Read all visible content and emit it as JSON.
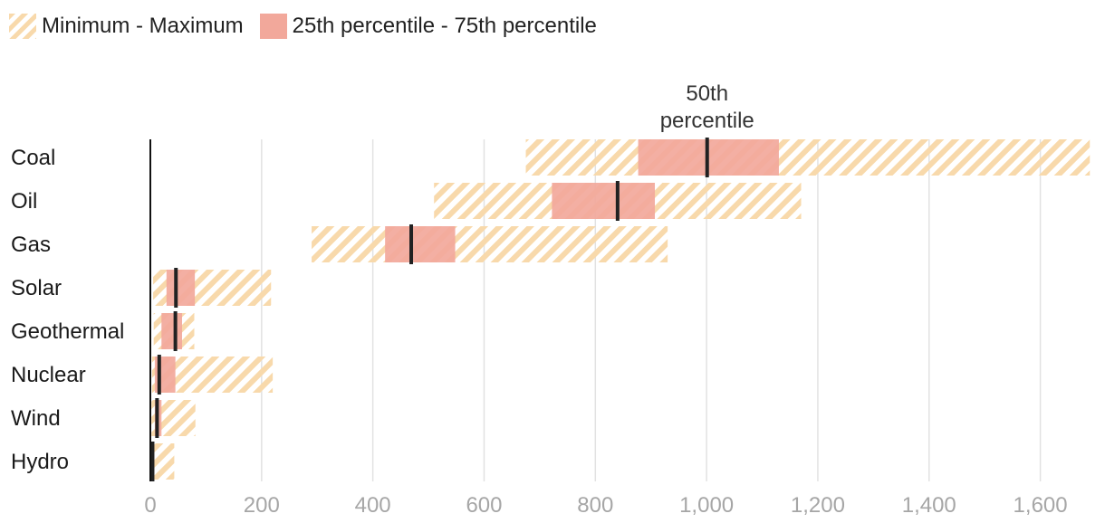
{
  "legend": {
    "range_label": "Minimum - Maximum",
    "iqr_label": "25th percentile - 75th percentile"
  },
  "colors": {
    "range_hatch": "#f8d9ab",
    "iqr_fill": "#f2a89b",
    "median_line": "#222222",
    "gridline": "#e2e2e2",
    "axis_line": "#111111",
    "tick_text": "#a6a6a6"
  },
  "chart_data": {
    "type": "bar",
    "subtype": "floating-range",
    "orientation": "horizontal",
    "categories": [
      "Coal",
      "Oil",
      "Gas",
      "Solar",
      "Geothermal",
      "Nuclear",
      "Wind",
      "Hydro"
    ],
    "series": [
      {
        "name": "Minimum - Maximum",
        "min": [
          675,
          510,
          290,
          5,
          6,
          3,
          2,
          1
        ],
        "max": [
          1689,
          1170,
          930,
          217,
          79,
          220,
          81,
          43
        ]
      },
      {
        "name": "25th percentile - 75th percentile",
        "q1": [
          877,
          722,
          422,
          29,
          20,
          8,
          8,
          3
        ],
        "q3": [
          1130,
          907,
          548,
          80,
          57,
          45,
          20,
          7
        ]
      }
    ],
    "median": [
      1001,
      840,
      469,
      46,
      45,
      16,
      12,
      4
    ],
    "annotation": "50th percentile",
    "xlim": [
      0,
      1700
    ],
    "xticks": [
      0,
      200,
      400,
      600,
      800,
      1000,
      1200,
      1400,
      1600
    ],
    "xtick_labels": [
      "0",
      "200",
      "400",
      "600",
      "800",
      "1,000",
      "1,200",
      "1,400",
      "1,600"
    ],
    "grid": true,
    "legend_position": "top-left"
  }
}
